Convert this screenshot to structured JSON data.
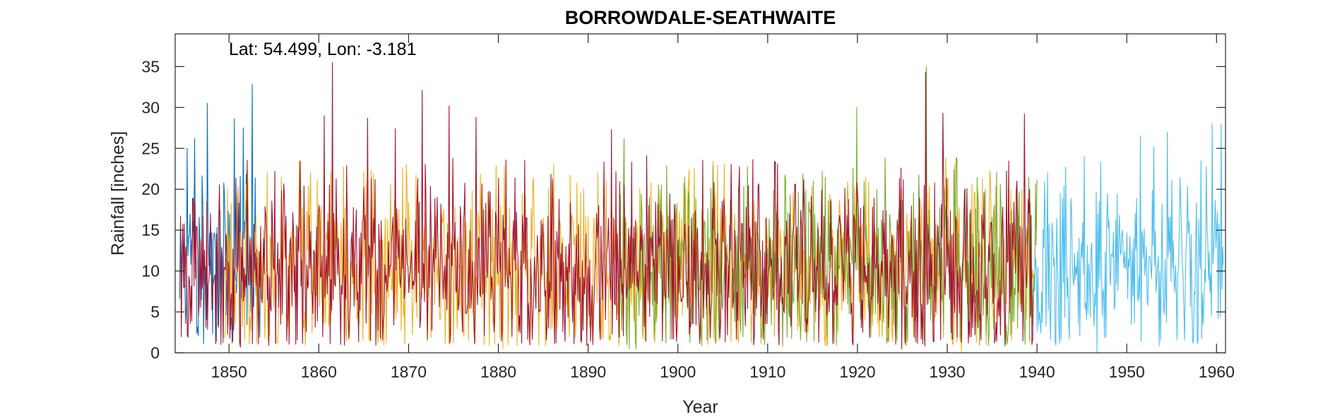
{
  "chart_data": {
    "type": "line",
    "title": "BORROWDALE-SEATHWAITE",
    "annotation": "Lat: 54.499, Lon: -3.181",
    "xlabel": "Year",
    "ylabel": "Rainfall [inches]",
    "xlim": [
      1844,
      1961
    ],
    "ylim": [
      0,
      39
    ],
    "xticks": [
      1850,
      1860,
      1870,
      1880,
      1890,
      1900,
      1910,
      1920,
      1930,
      1940,
      1950,
      1960
    ],
    "yticks": [
      0,
      5,
      10,
      15,
      20,
      25,
      30,
      35
    ],
    "grid": false,
    "box": true,
    "series": [
      {
        "color": "#0072bd",
        "start": 1844.5,
        "end": 1853.6,
        "mean": 10.5,
        "sd": 5.5,
        "seed": 11,
        "peaks": [
          [
            1847.6,
            30.5
          ],
          [
            1852.6,
            32.8
          ],
          [
            1851.6,
            27.5
          ],
          [
            1845.3,
            25.0
          ],
          [
            1846.2,
            26.2
          ],
          [
            1850.6,
            28.6
          ]
        ]
      },
      {
        "color": "#edb120",
        "start": 1849.5,
        "end": 1939.6,
        "mean": 10.2,
        "sd": 5.5,
        "seed": 23,
        "peaks": [
          [
            1880.5,
            0.5
          ],
          [
            1931.6,
            0.0
          ],
          [
            1931.7,
            11.0
          ]
        ]
      },
      {
        "color": "#77ac30",
        "start": 1893.5,
        "end": 1940.0,
        "mean": 10.5,
        "sd": 5.6,
        "seed": 37,
        "peaks": [
          [
            1894.0,
            26.2
          ],
          [
            1919.9,
            30.0
          ],
          [
            1927.7,
            35.0
          ],
          [
            1894.6,
            0.5
          ],
          [
            1895.3,
            0.5
          ]
        ]
      },
      {
        "color": "#a2142f",
        "start": 1844.6,
        "end": 1939.6,
        "mean": 10.3,
        "sd": 5.6,
        "seed": 53,
        "peaks": [
          [
            1861.5,
            35.5
          ],
          [
            1871.5,
            32.1
          ],
          [
            1874.5,
            30.2
          ],
          [
            1877.5,
            28.8
          ],
          [
            1892.6,
            27.3
          ],
          [
            1896.5,
            24.1
          ],
          [
            1927.6,
            34.3
          ],
          [
            1929.5,
            29.3
          ],
          [
            1938.6,
            29.2
          ],
          [
            1851.3,
            0.7
          ],
          [
            1924.9,
            0.5
          ],
          [
            1860.6,
            29.0
          ],
          [
            1865.4,
            28.7
          ],
          [
            1868.5,
            27.4
          ]
        ]
      },
      {
        "color": "#4dbeee",
        "start": 1939.6,
        "end": 1960.8,
        "mean": 10.2,
        "sd": 5.2,
        "seed": 71,
        "peaks": [
          [
            1946.7,
            0.0
          ],
          [
            1959.5,
            28.0
          ],
          [
            1960.5,
            28.0
          ],
          [
            1954.5,
            27.0
          ],
          [
            1951.5,
            26.5
          ],
          [
            1945.3,
            24.0
          ],
          [
            1953.0,
            25.2
          ],
          [
            1958.3,
            23.5
          ],
          [
            1941.2,
            22.0
          ]
        ]
      }
    ]
  }
}
